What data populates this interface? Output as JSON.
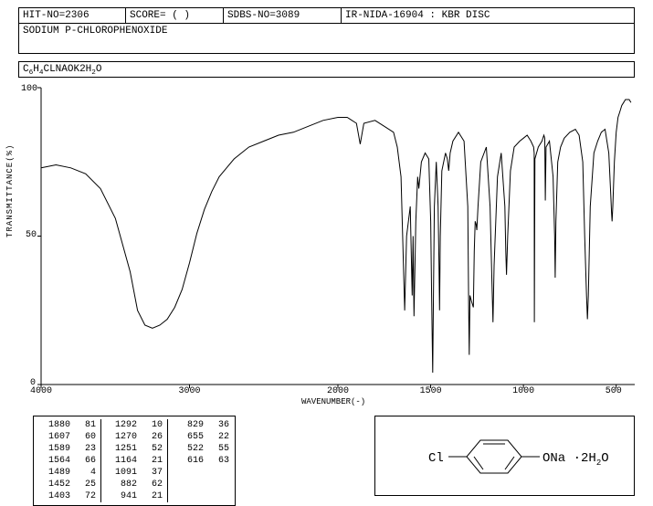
{
  "header": {
    "hit_no": "HIT-NO=2306",
    "score": "SCORE=  (  )",
    "sdbs_no": "SDBS-NO=3089",
    "ir_nida": "IR-NIDA-16904 : KBR DISC",
    "compound_name": "SODIUM P-CHLOROPHENOXIDE",
    "formula_html": "C<sub>6</sub>H<sub>4</sub>CLNAOK2H<sub>2</sub>O"
  },
  "chart": {
    "type": "line",
    "xlabel": "WAVENUMBER(-)",
    "ylabel": "TRANSMITTANCE(%)",
    "xmin": 4000,
    "xmax": 400,
    "ymin": 0,
    "ymax": 100,
    "xticks": [
      4000,
      3000,
      2000,
      1500,
      1000,
      500
    ],
    "yticks": [
      0,
      50,
      100
    ],
    "background_color": "#ffffff",
    "axis_color": "#000000",
    "line_color": "#000000",
    "line_width": 1,
    "data": [
      [
        4000,
        73
      ],
      [
        3900,
        74
      ],
      [
        3800,
        73
      ],
      [
        3700,
        71
      ],
      [
        3600,
        66
      ],
      [
        3500,
        56
      ],
      [
        3400,
        38
      ],
      [
        3350,
        25
      ],
      [
        3300,
        20
      ],
      [
        3250,
        19
      ],
      [
        3200,
        20
      ],
      [
        3150,
        22
      ],
      [
        3100,
        26
      ],
      [
        3050,
        32
      ],
      [
        3000,
        41
      ],
      [
        2950,
        51
      ],
      [
        2900,
        59
      ],
      [
        2850,
        65
      ],
      [
        2800,
        70
      ],
      [
        2750,
        73
      ],
      [
        2700,
        76
      ],
      [
        2650,
        78
      ],
      [
        2600,
        80
      ],
      [
        2500,
        82
      ],
      [
        2400,
        84
      ],
      [
        2300,
        85
      ],
      [
        2200,
        87
      ],
      [
        2100,
        89
      ],
      [
        2000,
        90
      ],
      [
        1950,
        90
      ],
      [
        1900,
        88
      ],
      [
        1880,
        81
      ],
      [
        1860,
        88
      ],
      [
        1800,
        89
      ],
      [
        1750,
        87
      ],
      [
        1700,
        85
      ],
      [
        1680,
        80
      ],
      [
        1660,
        70
      ],
      [
        1640,
        25
      ],
      [
        1630,
        50
      ],
      [
        1610,
        60
      ],
      [
        1600,
        30
      ],
      [
        1595,
        50
      ],
      [
        1590,
        23
      ],
      [
        1580,
        55
      ],
      [
        1570,
        70
      ],
      [
        1564,
        66
      ],
      [
        1550,
        75
      ],
      [
        1530,
        78
      ],
      [
        1510,
        76
      ],
      [
        1500,
        55
      ],
      [
        1495,
        30
      ],
      [
        1490,
        8
      ],
      [
        1489,
        4
      ],
      [
        1485,
        30
      ],
      [
        1480,
        60
      ],
      [
        1470,
        75
      ],
      [
        1460,
        60
      ],
      [
        1455,
        40
      ],
      [
        1452,
        25
      ],
      [
        1448,
        50
      ],
      [
        1440,
        72
      ],
      [
        1420,
        78
      ],
      [
        1410,
        76
      ],
      [
        1403,
        72
      ],
      [
        1395,
        78
      ],
      [
        1380,
        82
      ],
      [
        1350,
        85
      ],
      [
        1320,
        82
      ],
      [
        1300,
        60
      ],
      [
        1295,
        25
      ],
      [
        1292,
        10
      ],
      [
        1288,
        30
      ],
      [
        1280,
        28
      ],
      [
        1270,
        26
      ],
      [
        1265,
        45
      ],
      [
        1260,
        55
      ],
      [
        1255,
        54
      ],
      [
        1251,
        52
      ],
      [
        1245,
        60
      ],
      [
        1230,
        75
      ],
      [
        1200,
        80
      ],
      [
        1180,
        60
      ],
      [
        1170,
        35
      ],
      [
        1164,
        21
      ],
      [
        1158,
        40
      ],
      [
        1140,
        70
      ],
      [
        1120,
        78
      ],
      [
        1100,
        60
      ],
      [
        1095,
        45
      ],
      [
        1091,
        37
      ],
      [
        1085,
        50
      ],
      [
        1070,
        72
      ],
      [
        1050,
        80
      ],
      [
        1020,
        82
      ],
      [
        1000,
        83
      ],
      [
        980,
        84
      ],
      [
        960,
        82
      ],
      [
        945,
        80
      ],
      [
        942,
        78
      ],
      [
        941,
        21
      ],
      [
        938,
        76
      ],
      [
        920,
        80
      ],
      [
        900,
        82
      ],
      [
        890,
        84
      ],
      [
        885,
        83
      ],
      [
        882,
        62
      ],
      [
        878,
        80
      ],
      [
        860,
        82
      ],
      [
        840,
        70
      ],
      [
        832,
        50
      ],
      [
        829,
        36
      ],
      [
        825,
        55
      ],
      [
        815,
        75
      ],
      [
        800,
        80
      ],
      [
        780,
        83
      ],
      [
        750,
        85
      ],
      [
        720,
        86
      ],
      [
        700,
        84
      ],
      [
        680,
        75
      ],
      [
        670,
        50
      ],
      [
        660,
        30
      ],
      [
        655,
        22
      ],
      [
        650,
        30
      ],
      [
        640,
        60
      ],
      [
        620,
        78
      ],
      [
        600,
        82
      ],
      [
        580,
        85
      ],
      [
        560,
        86
      ],
      [
        540,
        78
      ],
      [
        530,
        65
      ],
      [
        525,
        58
      ],
      [
        522,
        55
      ],
      [
        518,
        60
      ],
      [
        510,
        75
      ],
      [
        500,
        85
      ],
      [
        490,
        90
      ],
      [
        480,
        92
      ],
      [
        470,
        94
      ],
      [
        460,
        95
      ],
      [
        450,
        96
      ],
      [
        440,
        96
      ],
      [
        430,
        96
      ],
      [
        420,
        95
      ]
    ]
  },
  "peak_table": {
    "columns": [
      [
        [
          1880,
          81
        ],
        [
          1607,
          60
        ],
        [
          1589,
          23
        ],
        [
          1564,
          66
        ],
        [
          1489,
          4
        ],
        [
          1452,
          25
        ],
        [
          1403,
          72
        ]
      ],
      [
        [
          1292,
          10
        ],
        [
          1270,
          26
        ],
        [
          1251,
          52
        ],
        [
          1164,
          21
        ],
        [
          1091,
          37
        ],
        [
          882,
          62
        ],
        [
          941,
          21
        ]
      ],
      [
        [
          829,
          36
        ],
        [
          655,
          22
        ],
        [
          522,
          55
        ],
        [
          616,
          63
        ]
      ]
    ]
  },
  "molecule": {
    "left_label": "Cl",
    "right_label_html": "ONa &nbsp;·2H<sub>2</sub>O"
  }
}
